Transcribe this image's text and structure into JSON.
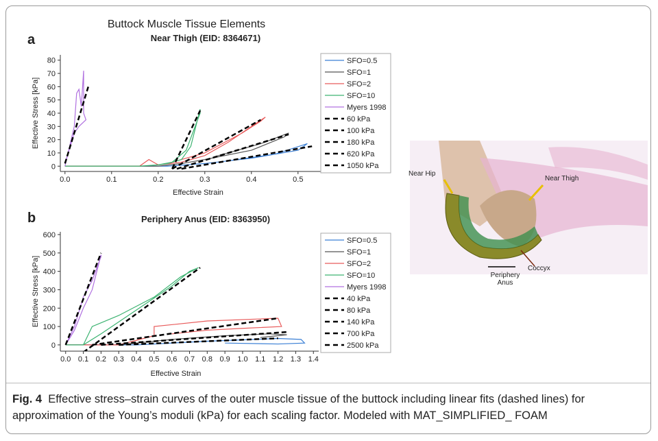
{
  "figure_title": "Buttock Muscle Tissue Elements",
  "chart_data": [
    {
      "type": "line",
      "panel": "a",
      "title": "Near Thigh (EID: 8364671)",
      "x_label": "Effective Strain",
      "y_label": "Effective Stress [kPa]",
      "xlim": [
        -0.01,
        0.64
      ],
      "ylim": [
        -4,
        84
      ],
      "xticks": [
        {
          "value": 0,
          "label": "0.0"
        },
        0.1,
        0.2,
        0.3,
        0.4,
        0.5
      ],
      "yticks": [
        0,
        10,
        20,
        30,
        40,
        50,
        60,
        70,
        80
      ],
      "legend": "right",
      "series": [
        {
          "name": "SFO=0.5",
          "color": "#3a7fd5",
          "dashed": false,
          "x": [
            0,
            0.22,
            0.3,
            0.4,
            0.5,
            0.52,
            0.45,
            0.35
          ],
          "values": [
            0,
            0,
            2,
            6,
            12,
            17,
            9,
            4
          ]
        },
        {
          "name": "SFO=1",
          "color": "#555555",
          "dashed": false,
          "x": [
            0,
            0.2,
            0.25,
            0.3,
            0.4,
            0.47,
            0.48,
            0.42,
            0.32
          ],
          "values": [
            0,
            0,
            2,
            5,
            12,
            22,
            25,
            17,
            7
          ]
        },
        {
          "name": "SFO=2",
          "color": "#e85a5a",
          "dashed": false,
          "x": [
            0,
            0.16,
            0.18,
            0.2,
            0.25,
            0.3,
            0.35,
            0.4,
            0.43,
            0.42,
            0.38,
            0.3,
            0.22
          ],
          "values": [
            0,
            0,
            5,
            1,
            3,
            8,
            18,
            30,
            37,
            34,
            25,
            10,
            2
          ]
        },
        {
          "name": "SFO=10",
          "color": "#3cb371",
          "dashed": false,
          "x": [
            0,
            0.16,
            0.2,
            0.22,
            0.25,
            0.27,
            0.29,
            0.29,
            0.26,
            0.23,
            0.2
          ],
          "values": [
            0,
            0,
            1,
            2,
            5,
            15,
            43,
            40,
            12,
            3,
            1
          ]
        },
        {
          "name": "Myers 1998",
          "color": "#b070e0",
          "dashed": false,
          "x": [
            0,
            0.01,
            0.02,
            0.025,
            0.03,
            0.035,
            0.04,
            0.04,
            0.045,
            0.03,
            0.02,
            0
          ],
          "values": [
            0,
            15,
            30,
            55,
            58,
            45,
            72,
            40,
            35,
            30,
            25,
            2
          ]
        },
        {
          "name": "60 kPa",
          "color": "#000000",
          "dashed": true,
          "x": [
            0.25,
            0.53
          ],
          "values": [
            -2,
            15
          ]
        },
        {
          "name": "100 kPa",
          "color": "#000000",
          "dashed": true,
          "x": [
            0.24,
            0.48
          ],
          "values": [
            -2,
            24
          ]
        },
        {
          "name": "180 kPa",
          "color": "#000000",
          "dashed": true,
          "x": [
            0.23,
            0.42
          ],
          "values": [
            -2,
            35
          ]
        },
        {
          "name": "620 kPa",
          "color": "#000000",
          "dashed": true,
          "x": [
            0.23,
            0.29
          ],
          "values": [
            -2,
            42
          ]
        },
        {
          "name": "1050 kPa",
          "color": "#000000",
          "dashed": true,
          "x": [
            0,
            0.05
          ],
          "values": [
            2,
            60
          ]
        }
      ]
    },
    {
      "type": "line",
      "panel": "b",
      "title": "Periphery Anus (EID: 8363950)",
      "x_label": "Effective Strain",
      "y_label": "Effective Stress [kPa]",
      "xlim": [
        -0.03,
        1.43
      ],
      "ylim": [
        -34,
        615
      ],
      "xticks": [
        {
          "value": 0,
          "label": "0.0"
        },
        0.1,
        0.2,
        0.3,
        0.4,
        0.5,
        0.6,
        0.7,
        0.8,
        0.9,
        {
          "value": 1,
          "label": "1.0"
        },
        1.1,
        1.2,
        1.3,
        1.4
      ],
      "yticks": [
        0,
        100,
        200,
        300,
        400,
        500,
        600
      ],
      "legend": "right",
      "series": [
        {
          "name": "SFO=0.5",
          "color": "#3a7fd5",
          "dashed": false,
          "x": [
            0,
            0.4,
            0.8,
            1.2,
            1.33,
            1.35,
            1.2,
            0.9
          ],
          "values": [
            0,
            0,
            20,
            35,
            30,
            10,
            5,
            10
          ]
        },
        {
          "name": "SFO=1",
          "color": "#555555",
          "dashed": false,
          "x": [
            0,
            0.3,
            0.6,
            0.9,
            1.15,
            1.25,
            1.1
          ],
          "values": [
            0,
            0,
            30,
            50,
            60,
            55,
            40
          ]
        },
        {
          "name": "SFO=2",
          "color": "#e85a5a",
          "dashed": false,
          "x": [
            0,
            0.3,
            0.5,
            0.5,
            0.8,
            1.2,
            1.22,
            1.0,
            0.8,
            0.6
          ],
          "values": [
            0,
            0,
            50,
            100,
            130,
            145,
            100,
            90,
            80,
            60
          ]
        },
        {
          "name": "SFO=10",
          "color": "#3cb371",
          "dashed": false,
          "x": [
            0,
            0.1,
            0.15,
            0.3,
            0.5,
            0.65,
            0.75,
            0.7,
            0.6,
            0.4,
            0.2,
            0.1
          ],
          "values": [
            0,
            0,
            100,
            160,
            260,
            370,
            420,
            400,
            320,
            190,
            60,
            0
          ]
        },
        {
          "name": "Myers 1998",
          "color": "#b070e0",
          "dashed": false,
          "x": [
            0,
            0.05,
            0.1,
            0.15,
            0.2,
            0.2,
            0.15,
            0.1,
            0.05,
            0
          ],
          "values": [
            0,
            80,
            200,
            300,
            490,
            480,
            350,
            260,
            100,
            0
          ]
        },
        {
          "name": "40 kPa",
          "color": "#000000",
          "dashed": true,
          "x": [
            0.3,
            1.2
          ],
          "values": [
            0,
            36
          ]
        },
        {
          "name": "80 kPa",
          "color": "#000000",
          "dashed": true,
          "x": [
            0.2,
            1.25
          ],
          "values": [
            0,
            70
          ]
        },
        {
          "name": "140 kPa",
          "color": "#000000",
          "dashed": true,
          "x": [
            0.15,
            1.2
          ],
          "values": [
            0,
            145
          ]
        },
        {
          "name": "700 kPa",
          "color": "#000000",
          "dashed": true,
          "x": [
            0.1,
            0.76
          ],
          "values": [
            -40,
            420
          ]
        },
        {
          "name": "2500 kPa",
          "color": "#000000",
          "dashed": true,
          "x": [
            0,
            0.2
          ],
          "values": [
            0,
            500
          ]
        }
      ]
    }
  ],
  "image": {
    "labels": [
      "Near Hip",
      "Near Thigh",
      "Coccyx",
      "Periphery Anus"
    ]
  },
  "caption": {
    "label": "Fig. 4",
    "text": "Effective stress–strain curves of the outer muscle tissue of the buttock including linear fits (dashed lines) for approximation of the Young’s moduli (kPa) for each scaling factor. Modeled with MAT_SIMPLIFIED_ FOAM"
  }
}
